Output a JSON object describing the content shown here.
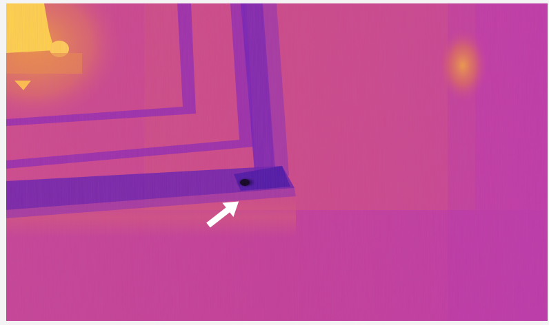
{
  "image": {
    "type": "thermal-infrared-photo",
    "palette": "ironbow",
    "colors": {
      "wall": "#c43c9e",
      "wall_warm": "#d25a7e",
      "frame_cool": "#8c2ab4",
      "trim_dark": "#5a1ca8",
      "cold_spot": "#12062a",
      "hot_lamp": "#ffd44a",
      "lamp_glow": "#f0a23c",
      "arrow": "#ffffff"
    }
  }
}
